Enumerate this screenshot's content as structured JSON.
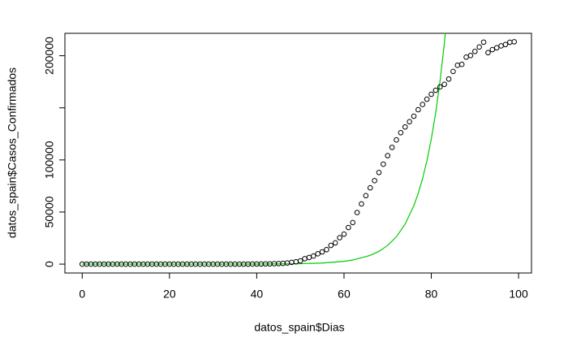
{
  "chart_data": {
    "type": "scatter",
    "x": [
      0,
      1,
      2,
      3,
      4,
      5,
      6,
      7,
      8,
      9,
      10,
      11,
      12,
      13,
      14,
      15,
      16,
      17,
      18,
      19,
      20,
      21,
      22,
      23,
      24,
      25,
      26,
      27,
      28,
      29,
      30,
      31,
      32,
      33,
      34,
      35,
      36,
      37,
      38,
      39,
      40,
      41,
      42,
      43,
      44,
      45,
      46,
      47,
      48,
      49,
      50,
      51,
      52,
      53,
      54,
      55,
      56,
      57,
      58,
      59,
      60,
      61,
      62,
      63,
      64,
      65,
      66,
      67,
      68,
      69,
      70,
      71,
      72,
      73,
      74,
      75,
      76,
      77,
      78,
      79,
      80,
      81,
      82,
      83,
      84,
      85,
      86,
      87,
      88,
      89,
      90,
      91,
      92,
      93,
      94,
      95,
      96,
      97,
      98,
      99
    ],
    "values": [
      0,
      0,
      0,
      0,
      0,
      0,
      0,
      0,
      0,
      1,
      1,
      1,
      1,
      1,
      1,
      1,
      1,
      1,
      1,
      2,
      2,
      2,
      2,
      2,
      2,
      2,
      2,
      2,
      2,
      2,
      2,
      2,
      2,
      2,
      6,
      13,
      15,
      32,
      45,
      84,
      120,
      165,
      222,
      259,
      400,
      500,
      673,
      1073,
      1695,
      2277,
      3146,
      5232,
      6391,
      7798,
      9942,
      11748,
      13910,
      17963,
      20410,
      25374,
      28768,
      35136,
      39885,
      49515,
      57786,
      65719,
      73235,
      80110,
      87956,
      95923,
      104118,
      112065,
      119199,
      126168,
      131646,
      136675,
      141942,
      148220,
      153222,
      158273,
      163027,
      166831,
      170099,
      172541,
      177644,
      184948,
      190839,
      191726,
      198674,
      200210,
      204178,
      208389,
      213024,
      202990,
      205905,
      207634,
      209465,
      210773,
      212917,
      213435
    ],
    "point_color": "#000000",
    "fit": {
      "type": "line",
      "color": "#00cc00",
      "x": [
        0,
        10,
        20,
        30,
        40,
        50,
        55,
        60,
        62,
        66,
        68,
        70,
        72,
        74,
        76,
        77,
        78,
        79,
        80,
        81,
        82,
        83,
        84
      ],
      "values": [
        0,
        0,
        1,
        9,
        60,
        402,
        1040,
        2690,
        3930,
        8390,
        12270,
        17950,
        26240,
        38380,
        56120,
        67860,
        82070,
        99250,
        120000,
        145100,
        175500,
        212200,
        256600
      ]
    },
    "xlabel": "datos_spain$Dias",
    "ylabel": "datos_spain$Casos_Confirmados",
    "xlim": [
      -3.96,
      102.96
    ],
    "ylim": [
      -8520,
      221520
    ],
    "xticks": [
      0,
      20,
      40,
      60,
      80,
      100
    ],
    "yticks": [
      0,
      50000,
      100000,
      {
        "value": 150000,
        "label": null
      },
      200000
    ]
  }
}
